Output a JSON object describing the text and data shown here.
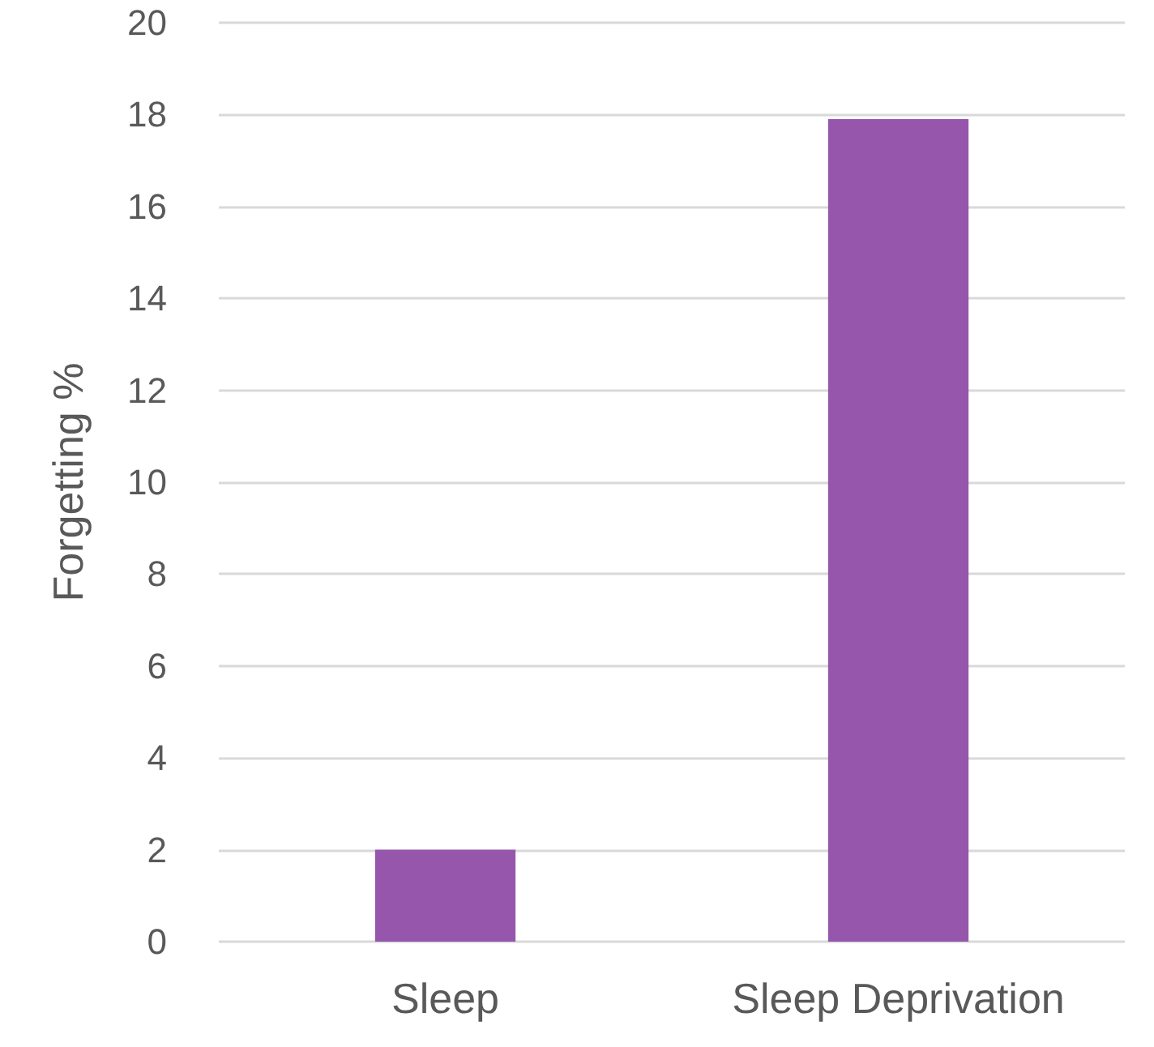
{
  "chart_data": {
    "type": "bar",
    "ylabel": "Forgetting %",
    "categories": [
      "Sleep",
      "Sleep Deprivation"
    ],
    "values": [
      2,
      17.9
    ],
    "color": "#9556ac",
    "ylim": [
      0,
      20
    ],
    "yticks": [
      0,
      2,
      4,
      6,
      8,
      10,
      12,
      14,
      16,
      18,
      20
    ],
    "grid": "y"
  }
}
